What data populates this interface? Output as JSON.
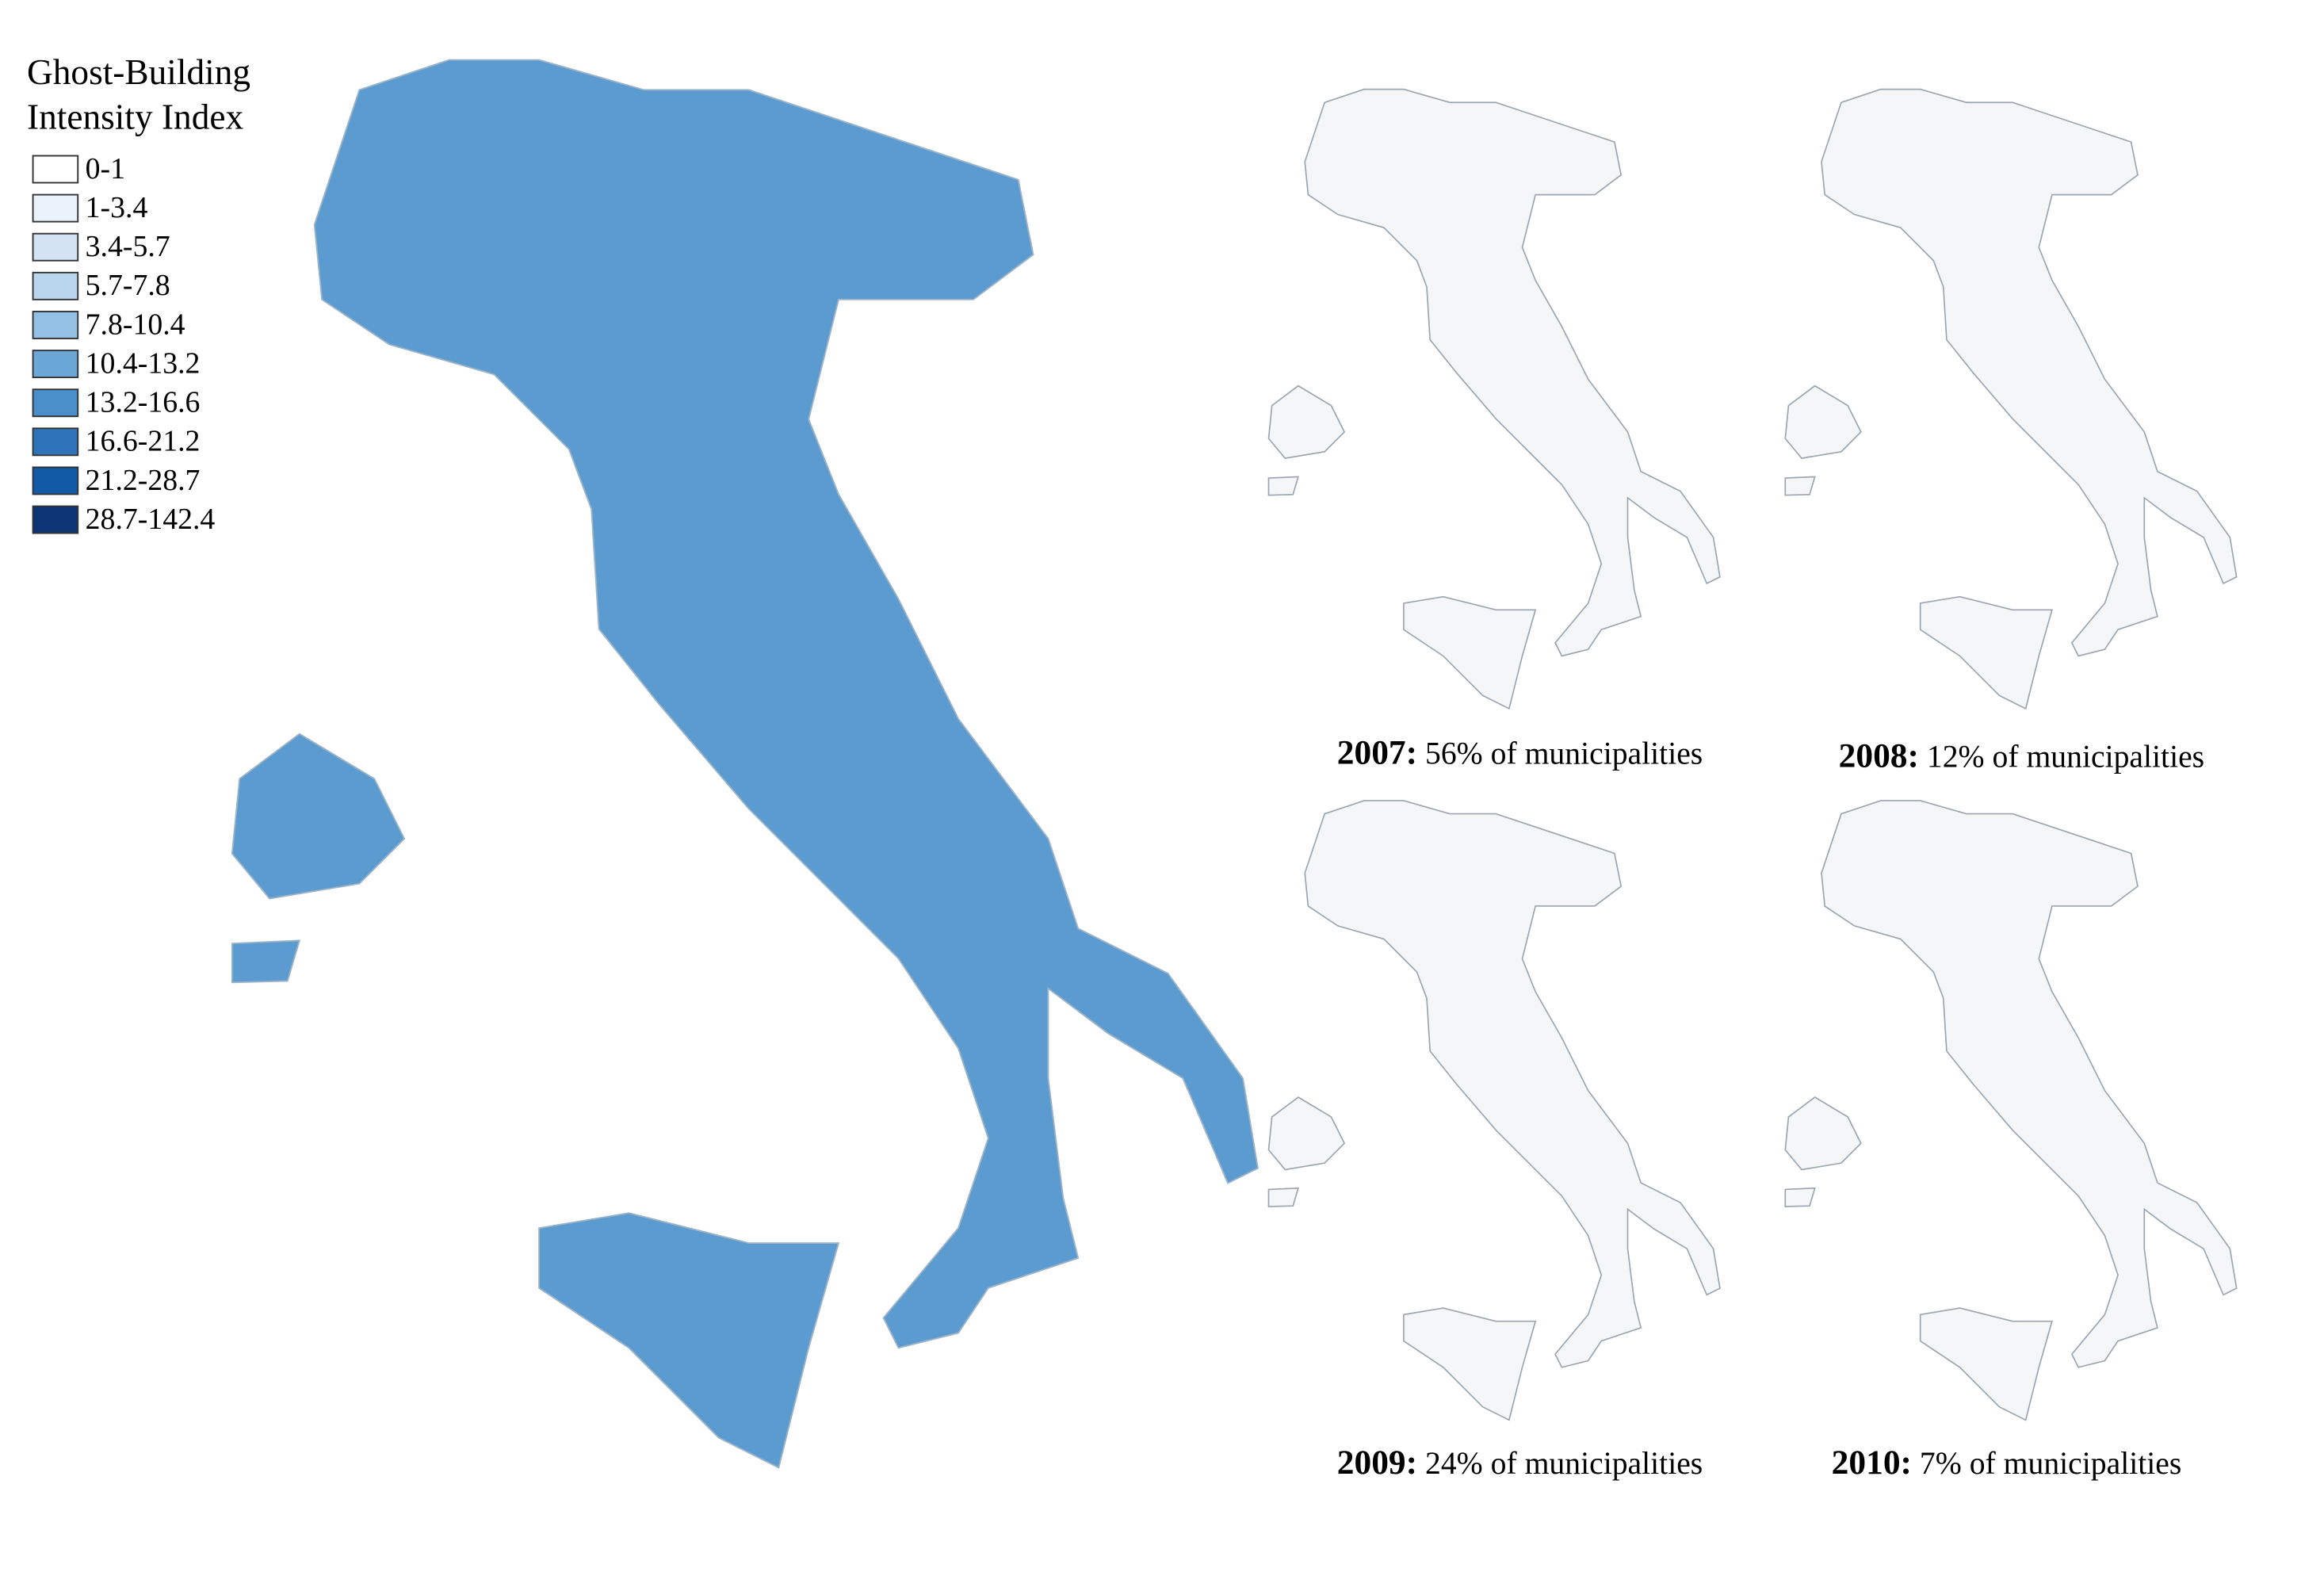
{
  "legend": {
    "title_lines": [
      "Ghost-Building",
      "Intensity Index"
    ],
    "classes": [
      {
        "label": "0-1",
        "color": "#ffffff"
      },
      {
        "label": "1-3.4",
        "color": "#eaf2fb"
      },
      {
        "label": "3.4-5.7",
        "color": "#d3e3f3"
      },
      {
        "label": "5.7-7.8",
        "color": "#b9d6ee"
      },
      {
        "label": "7.8-10.4",
        "color": "#94c0e3"
      },
      {
        "label": "10.4-13.2",
        "color": "#6aa6d6"
      },
      {
        "label": "13.2-16.6",
        "color": "#4a8fca"
      },
      {
        "label": "16.6-21.2",
        "color": "#2f74ba"
      },
      {
        "label": "21.2-28.7",
        "color": "#135aa6"
      },
      {
        "label": "28.7-142.4",
        "color": "#0b3575"
      }
    ]
  },
  "panels": [
    {
      "year": "2007:",
      "caption": "56% of municipalities"
    },
    {
      "year": "2008:",
      "caption": "12% of municipalities"
    },
    {
      "year": "2009:",
      "caption": "24% of municipalities"
    },
    {
      "year": "2010:",
      "caption": "7% of municipalities"
    }
  ]
}
